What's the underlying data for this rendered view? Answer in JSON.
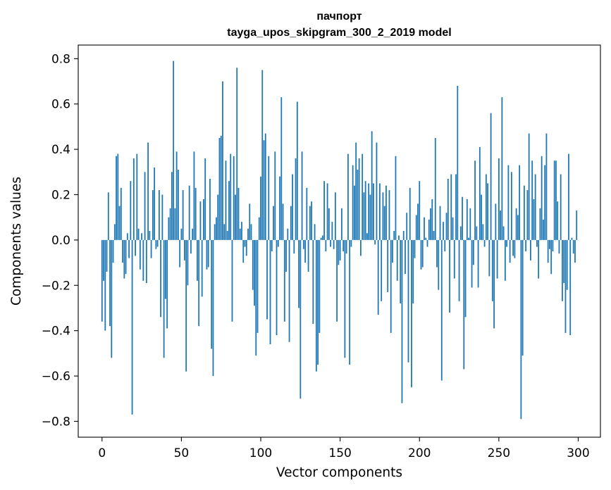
{
  "chart_data": {
    "type": "bar",
    "title": "пачпорт",
    "subtitle": "tayga_upos_skipgram_300_2_2019 model",
    "xlabel": "Vector components",
    "ylabel": "Components values",
    "xlim": [
      -15,
      314
    ],
    "ylim": [
      -0.87,
      0.86
    ],
    "xticks": [
      {
        "value": 0,
        "label": "0"
      },
      {
        "value": 50,
        "label": "50"
      },
      {
        "value": 100,
        "label": "100"
      },
      {
        "value": 150,
        "label": "150"
      },
      {
        "value": 200,
        "label": "200"
      },
      {
        "value": 250,
        "label": "250"
      },
      {
        "value": 300,
        "label": "300"
      }
    ],
    "yticks": [
      {
        "value": 0.8,
        "label": "0.8"
      },
      {
        "value": 0.6,
        "label": "0.6"
      },
      {
        "value": 0.4,
        "label": "0.4"
      },
      {
        "value": 0.2,
        "label": "0.2"
      },
      {
        "value": 0.0,
        "label": "0.0"
      },
      {
        "value": -0.2,
        "label": "−0.2"
      },
      {
        "value": -0.4,
        "label": "−0.4"
      },
      {
        "value": -0.6,
        "label": "−0.6"
      },
      {
        "value": -0.8,
        "label": "−0.8"
      }
    ],
    "grid": false,
    "bar_color": "#1f77b4",
    "series": [
      {
        "x_start": 0,
        "values": [
          -0.36,
          -0.18,
          -0.4,
          -0.14,
          0.21,
          -0.38,
          -0.52,
          -0.1,
          0.07,
          0.37,
          0.38,
          0.15,
          0.23,
          -0.1,
          -0.17,
          -0.15,
          0.03,
          -0.08,
          0.26,
          -0.77,
          0.36,
          -0.07,
          0.38,
          0.05,
          -0.13,
          0.03,
          -0.18,
          0.3,
          -0.19,
          0.43,
          0.04,
          -0.08,
          0.22,
          0.32,
          -0.04,
          -0.03,
          0.22,
          -0.34,
          0.2,
          -0.52,
          -0.26,
          -0.39,
          0.1,
          0.14,
          0.3,
          0.79,
          0.14,
          0.39,
          0.31,
          -0.12,
          0.05,
          0.22,
          -0.09,
          -0.58,
          -0.2,
          0.24,
          -0.06,
          0.05,
          0.39,
          0.23,
          -0.18,
          -0.38,
          0.17,
          -0.25,
          0.18,
          0.36,
          -0.13,
          -0.12,
          0.27,
          -0.48,
          -0.6,
          0.07,
          0.1,
          0.2,
          0.45,
          0.46,
          0.7,
          0.07,
          0.35,
          0.04,
          0.26,
          0.38,
          -0.36,
          0.37,
          0.2,
          0.76,
          0.23,
          0.05,
          0.08,
          -0.1,
          -0.03,
          -0.07,
          0.05,
          0.16,
          0.07,
          -0.22,
          -0.29,
          -0.51,
          -0.41,
          0.1,
          0.28,
          0.75,
          0.44,
          0.47,
          -0.35,
          0.37,
          -0.46,
          -0.05,
          0.15,
          0.39,
          -0.42,
          -0.03,
          0.28,
          0.63,
          0.16,
          -0.36,
          -0.14,
          0.05,
          -0.45,
          0.15,
          0.29,
          -0.06,
          0.36,
          0.61,
          -0.3,
          -0.7,
          0.39,
          -0.04,
          -0.1,
          0.23,
          -0.14,
          0.15,
          0.17,
          -0.37,
          0.07,
          -0.58,
          -0.55,
          -0.41,
          0.01,
          0.02,
          0.26,
          -0.05,
          0.25,
          0.14,
          -0.03,
          0.08,
          -0.04,
          0.21,
          -0.36,
          -0.11,
          -0.09,
          0.14,
          -0.05,
          -0.52,
          -0.06,
          0.38,
          -0.55,
          -0.03,
          0.33,
          0.24,
          0.43,
          0.31,
          0.36,
          -0.07,
          0.38,
          0.21,
          0.26,
          0.03,
          0.25,
          0.2,
          0.48,
          0.25,
          -0.02,
          0.43,
          -0.33,
          0.25,
          -0.27,
          0.21,
          0.15,
          0.24,
          -0.23,
          0.22,
          -0.41,
          -0.1,
          0.04,
          0.37,
          -0.18,
          0.02,
          -0.28,
          -0.72,
          0.04,
          -0.15,
          0.12,
          -0.54,
          0.23,
          -0.65,
          -0.28,
          -0.08,
          0.11,
          0.16,
          0.26,
          -0.13,
          -0.12,
          0.1,
          0.01,
          -0.03,
          0.09,
          0.14,
          0.18,
          0.04,
          0.45,
          -0.12,
          -0.22,
          0.15,
          -0.62,
          0.08,
          -0.05,
          0.12,
          0.27,
          -0.32,
          0.29,
          0.1,
          -0.17,
          0.29,
          0.68,
          -0.27,
          0.06,
          0.19,
          -0.57,
          -0.34,
          0.18,
          0.01,
          0.14,
          -0.21,
          -0.11,
          0.35,
          0.06,
          -0.21,
          0.41,
          0.2,
          0.07,
          -0.03,
          0.29,
          0.25,
          -0.16,
          0.56,
          -0.27,
          -0.39,
          0.16,
          -0.17,
          0.36,
          0.13,
          0.63,
          0.06,
          -0.18,
          -0.03,
          0.33,
          -0.1,
          0.3,
          -0.07,
          -0.08,
          0.14,
          0.11,
          0.33,
          -0.79,
          -0.51,
          0.24,
          -0.05,
          0.22,
          0.47,
          -0.09,
          0.35,
          0.18,
          0.29,
          -0.03,
          -0.17,
          0.14,
          0.37,
          0.09,
          0.33,
          0.47,
          -0.1,
          -0.04,
          -0.15,
          -0.05,
          0.35,
          0.35,
          0.17,
          -0.06,
          0.29,
          -0.27,
          -0.19,
          -0.41,
          -0.22,
          0.38,
          -0.42,
          0.01,
          -0.06,
          -0.1,
          0.13
        ]
      }
    ]
  }
}
